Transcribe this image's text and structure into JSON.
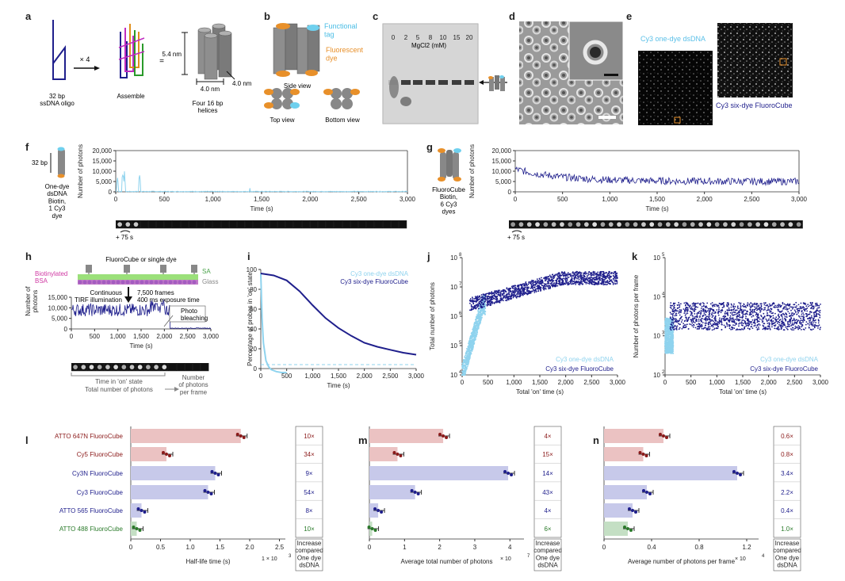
{
  "colors": {
    "dark_blue": "#1f1f8c",
    "light_blue": "#8fd3ee",
    "dark_red": "#8b1a1a",
    "bar_red": "#ebc2c2",
    "bar_blue": "#c7c9ea",
    "green": "#2a7a2a",
    "bar_green": "#c4dfc4",
    "orange": "#f09a1e",
    "cyan": "#6fd0ee"
  },
  "panel_letters": [
    "a",
    "b",
    "c",
    "d",
    "e",
    "f",
    "g",
    "h",
    "i",
    "j",
    "k",
    "l",
    "m",
    "n"
  ],
  "panel_a": {
    "oligo": "32 bp\nssDNA oligo",
    "times": "× 4",
    "assemble": "Assemble",
    "equals": "=",
    "height": "5.4 nm",
    "width": "4.0 nm",
    "depth": "4.0 nm",
    "helices": "Four 16 bp\nhelices"
  },
  "panel_b": {
    "tag": "Functional\ntag",
    "dye": "Fluorescent\ndye",
    "side": "Side view",
    "top": "Top view",
    "bottom": "Bottom view"
  },
  "panel_c": {
    "lanes": [
      "0",
      "2",
      "5",
      "8",
      "10",
      "15",
      "20"
    ],
    "xlabel": "MgCl2 (mM)"
  },
  "panel_e": {
    "left": "Cy3 one-dye dsDNA",
    "right": "Cy3 six-dye FluoroCube"
  },
  "panel_f": {
    "label_32": "32 bp",
    "desc": "One-dye\ndsDNA\nBiotin,\n1 Cy3\ndye",
    "ylabel": "Number of photons",
    "xlabel": "Time (s)",
    "yticks": [
      "0",
      "5,000",
      "10,000",
      "15,000",
      "20,000"
    ],
    "xticks": [
      "0",
      "500",
      "1,000",
      "1,500",
      "2,000",
      "2,500",
      "3,000"
    ],
    "time_mark": "+ 75 s"
  },
  "panel_g": {
    "desc": "FluoroCube\nBiotin,\n6 Cy3\ndyes",
    "ylabel": "Number of photons",
    "xlabel": "Time (s)",
    "yticks": [
      "0",
      "5,000",
      "10,000",
      "15,000",
      "20,000"
    ],
    "xticks": [
      "0",
      "500",
      "1,000",
      "1,500",
      "2,000",
      "2,500",
      "3,000"
    ],
    "time_mark": "+ 75 s"
  },
  "panel_h": {
    "probe": "FluoroCube or single dye",
    "sa": "SA",
    "biotin": "Biotinylated\nBSA",
    "glass": "Glass",
    "cont": "Continuous\nTIRF illumination",
    "frames": "7,500 frames\n400 ms exposure time",
    "ylabel": "Number of\nphotons",
    "yticks": [
      "0",
      "5,000",
      "10,000",
      "15,000"
    ],
    "xticks": [
      "0",
      "500",
      "1,000",
      "1,500",
      "2,000",
      "2,500",
      "3,000"
    ],
    "xlabel": "Time (s)",
    "bleach": "Photo\nbleaching",
    "on_state": "Time in 'on' state",
    "total": "Total number of photons",
    "per_frame": "Number\nof photons\nper frame"
  },
  "panel_i": {
    "ylabel": "Percentage of probes in 'on' state",
    "xlabel": "Time (s)",
    "xticks": [
      "0",
      "500",
      "1,000",
      "1,500",
      "2,000",
      "2,500",
      "3,000"
    ],
    "yticks": [
      "0",
      "20",
      "40",
      "60",
      "80",
      "100"
    ],
    "legend1": "Cy3 one-dye dsDNA",
    "legend2": "Cy3 six-dye FluoroCube"
  },
  "panel_j": {
    "ylabel": "Total number of photons",
    "xlabel": "Total 'on' time (s)",
    "xticks": [
      "0",
      "500",
      "1,000",
      "1,500",
      "2,000",
      "2,500",
      "3,000"
    ],
    "yticks": [
      "10",
      "10",
      "10",
      "10",
      "10"
    ],
    "yexp": [
      "4",
      "5",
      "6",
      "7",
      "8"
    ],
    "legend1": "Cy3 one-dye dsDNA",
    "legend2": "Cy3 six-dye FluoroCube"
  },
  "panel_k": {
    "ylabel": "Number of photons per frame",
    "xlabel": "Total 'on' time (s)",
    "xticks": [
      "0",
      "500",
      "1,000",
      "1,500",
      "2,000",
      "2,500",
      "3,000"
    ],
    "yticks": [
      "10",
      "10",
      "10",
      "10"
    ],
    "yexp": [
      "2",
      "3",
      "4",
      "5"
    ],
    "legend1": "Cy3 one-dye dsDNA",
    "legend2": "Cy3 six-dye FluoroCube"
  },
  "chart_data": [
    {
      "type": "bar",
      "panel": "l",
      "categories": [
        "ATTO 647N FluoroCube",
        "Cy5 FluoroCube",
        "Cy3N FluoroCube",
        "Cy3 FluoroCube",
        "ATTO 565 FluoroCube",
        "ATTO 488 FluoroCube"
      ],
      "values": [
        1.85,
        0.6,
        1.42,
        1.3,
        0.18,
        0.1
      ],
      "xlabel": "Half-life time (s)",
      "scale_label": "1 × 10",
      "scale_exp": "3",
      "xticks": [
        "0",
        "0.5",
        "1.0",
        "1.5",
        "2.0",
        "2.5"
      ],
      "xlim": [
        0,
        2.6
      ],
      "increase": [
        "10×",
        "34×",
        "9×",
        "54×",
        "8×",
        "10×"
      ],
      "increase_header": "Increase\ncompared\nOne dye\ndsDNA"
    },
    {
      "type": "bar",
      "panel": "m",
      "categories": [
        "ATTO 647N FluoroCube",
        "Cy5 FluoroCube",
        "Cy3N FluoroCube",
        "Cy3 FluoroCube",
        "ATTO 565 FluoroCube",
        "ATTO 488 FluoroCube"
      ],
      "values": [
        2.1,
        0.8,
        3.95,
        1.3,
        0.25,
        0.08
      ],
      "xlabel": "Average total number of photons",
      "scale_label": "× 10",
      "scale_exp": "7",
      "xticks": [
        "0",
        "1",
        "2",
        "3",
        "4"
      ],
      "xlim": [
        0,
        4.4
      ],
      "increase": [
        "4×",
        "15×",
        "14×",
        "43×",
        "4×",
        "6×"
      ],
      "increase_header": "Increase\ncompared\nOne dye\ndsDNA"
    },
    {
      "type": "bar",
      "panel": "n",
      "categories": [
        "ATTO 647N FluoroCube",
        "Cy5 FluoroCube",
        "Cy3N FluoroCube",
        "Cy3 FluoroCube",
        "ATTO 565 FluoroCube",
        "ATTO 488 FluoroCube"
      ],
      "values": [
        0.5,
        0.33,
        1.12,
        0.36,
        0.24,
        0.2
      ],
      "xlabel": "Average number of photons per frame",
      "scale_label": "× 10",
      "scale_exp": "4",
      "xticks": [
        "0",
        "0.4",
        "0.8",
        "1.2"
      ],
      "xlim": [
        0,
        1.3
      ],
      "increase": [
        "0.6×",
        "0.8×",
        "3.4×",
        "2.2×",
        "0.4×",
        "1.0×"
      ],
      "increase_header": "Increase\ncompared\nOne dye\ndsDNA"
    },
    {
      "type": "line",
      "panel": "i",
      "series": [
        {
          "name": "Cy3 one-dye dsDNA",
          "x": [
            0,
            25,
            50,
            100,
            150,
            200,
            300,
            400,
            500
          ],
          "y": [
            100,
            55,
            30,
            12,
            6,
            3,
            1,
            0,
            0
          ]
        },
        {
          "name": "Cy3 six-dye FluoroCube",
          "x": [
            0,
            250,
            500,
            750,
            1000,
            1250,
            1500,
            1750,
            2000,
            2250,
            2500,
            2750,
            3000
          ],
          "y": [
            100,
            98,
            93,
            82,
            68,
            55,
            45,
            37,
            30,
            26,
            23,
            20,
            18
          ]
        }
      ]
    }
  ]
}
